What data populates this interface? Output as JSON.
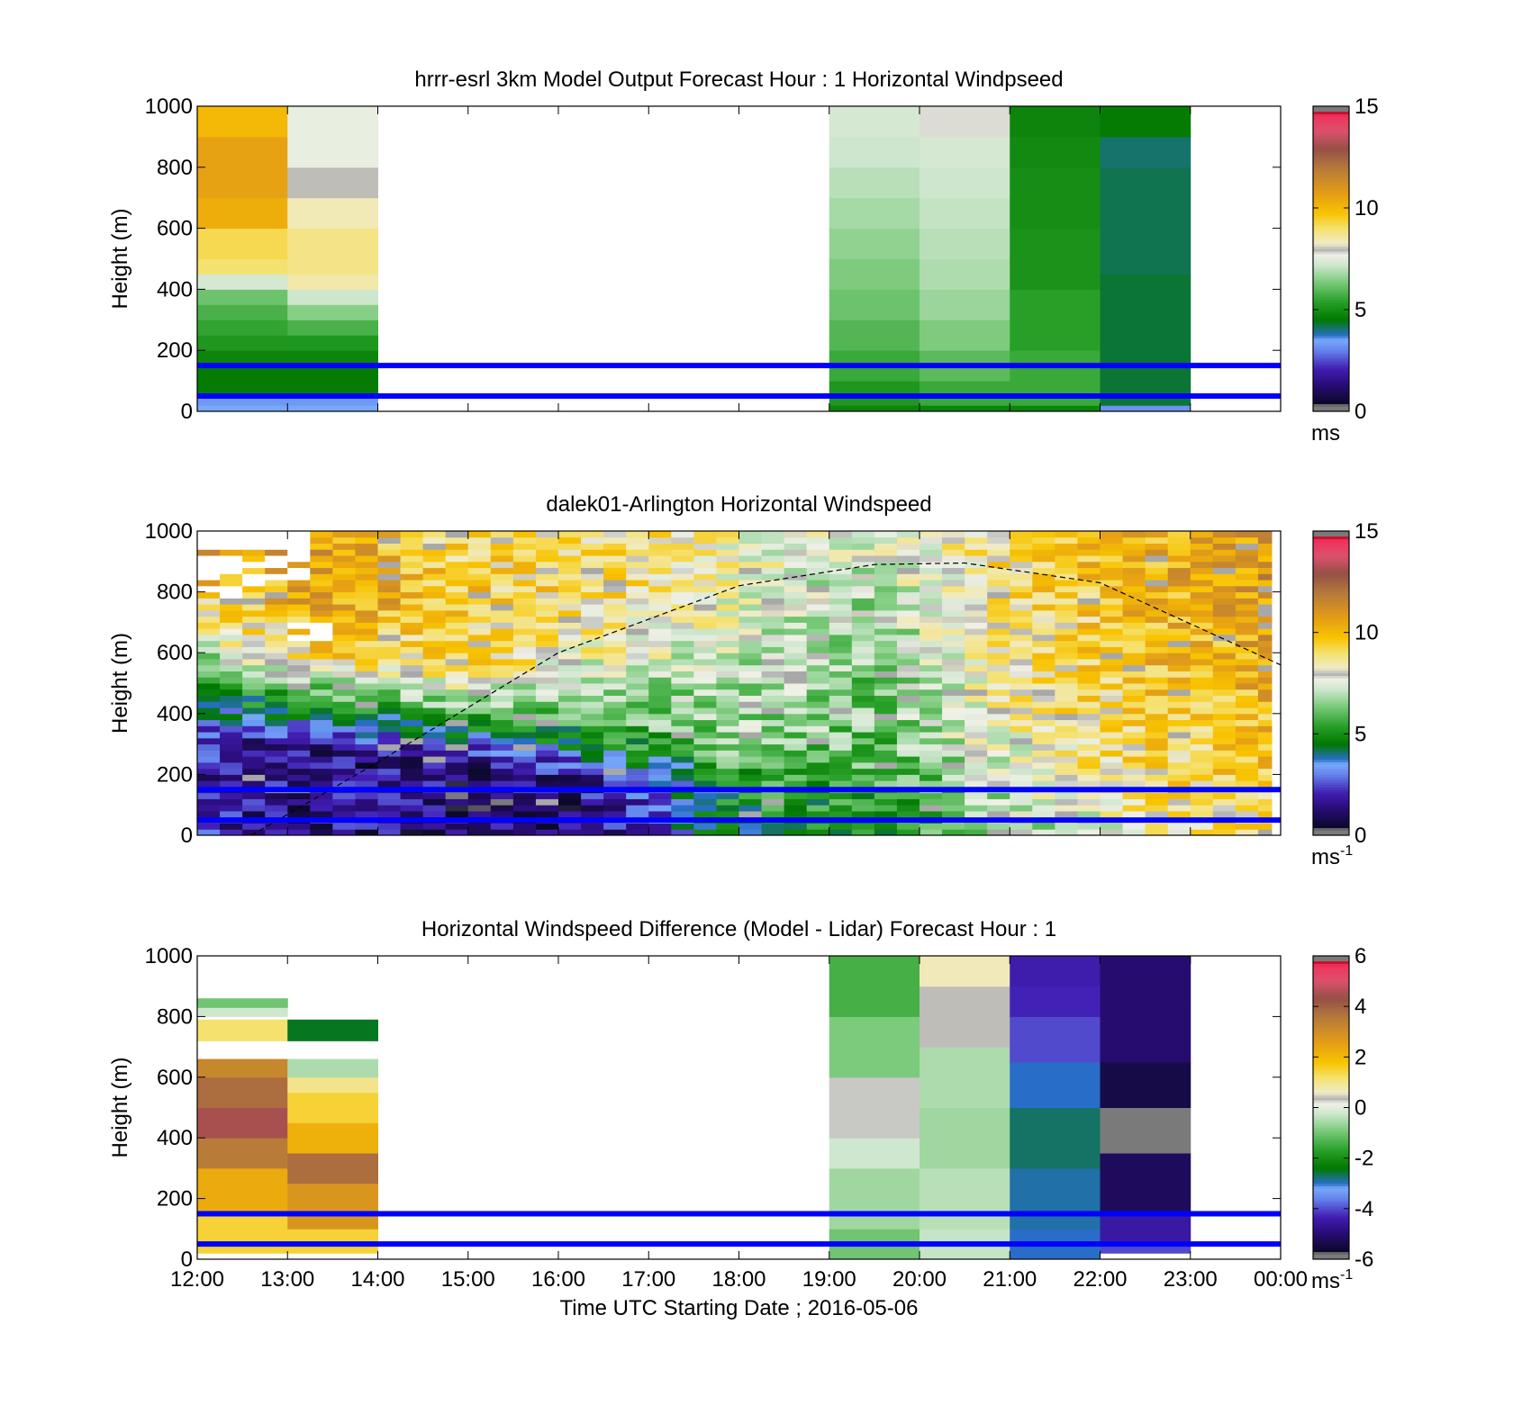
{
  "x_tick_labels": [
    "12:00",
    "13:00",
    "14:00",
    "15:00",
    "16:00",
    "17:00",
    "18:00",
    "19:00",
    "20:00",
    "21:00",
    "22:00",
    "23:00",
    "00:00"
  ],
  "xlabel": "Time UTC  Starting Date ; 2016-05-06",
  "chart_data": [
    {
      "type": "heatmap",
      "title": "hrrr-esrl 3km Model Output   Forecast Hour : 1 Horizontal Windpseed",
      "ylabel": "Height (m)",
      "ylim": [
        0,
        1000
      ],
      "y_ticks": [
        0,
        200,
        400,
        600,
        800,
        1000
      ],
      "colorbar": {
        "min": 0,
        "max": 15,
        "ticks": [
          0,
          5,
          10,
          15
        ],
        "unit": "ms",
        "unit_sup": ""
      },
      "reference_lines_m": [
        50,
        150
      ],
      "grid": false,
      "columns": [
        {
          "hour_start": 12,
          "hour_end": 13,
          "segments": [
            [
              0,
              20,
              3.5
            ],
            [
              20,
              50,
              3.3
            ],
            [
              50,
              100,
              4.6
            ],
            [
              100,
              150,
              4.6
            ],
            [
              150,
              200,
              4.8
            ],
            [
              200,
              250,
              5.2
            ],
            [
              250,
              300,
              5.5
            ],
            [
              300,
              350,
              5.8
            ],
            [
              350,
              400,
              6.2
            ],
            [
              400,
              450,
              7.3
            ],
            [
              450,
              500,
              9.0
            ],
            [
              500,
              600,
              9.2
            ],
            [
              600,
              700,
              10.3
            ],
            [
              700,
              800,
              10.6
            ],
            [
              800,
              900,
              10.6
            ],
            [
              900,
              1000,
              10.0
            ]
          ]
        },
        {
          "hour_start": 13,
          "hour_end": 14,
          "segments": [
            [
              0,
              20,
              3.5
            ],
            [
              20,
              50,
              3.3
            ],
            [
              50,
              150,
              4.6
            ],
            [
              150,
              200,
              4.8
            ],
            [
              200,
              250,
              5.2
            ],
            [
              250,
              300,
              5.8
            ],
            [
              300,
              350,
              6.5
            ],
            [
              350,
              400,
              7.2
            ],
            [
              400,
              450,
              8.5
            ],
            [
              450,
              600,
              8.8
            ],
            [
              600,
              700,
              8.4
            ],
            [
              700,
              800,
              8.0
            ],
            [
              800,
              900,
              7.6
            ],
            [
              900,
              1000,
              7.6
            ]
          ]
        },
        {
          "hour_start": 19,
          "hour_end": 20,
          "segments": [
            [
              0,
              20,
              4.8
            ],
            [
              20,
              100,
              5.2
            ],
            [
              100,
              200,
              5.6
            ],
            [
              200,
              300,
              5.9
            ],
            [
              300,
              400,
              6.2
            ],
            [
              400,
              500,
              6.4
            ],
            [
              500,
              600,
              6.6
            ],
            [
              600,
              700,
              6.8
            ],
            [
              700,
              800,
              7.0
            ],
            [
              800,
              900,
              7.2
            ],
            [
              900,
              1000,
              7.3
            ]
          ]
        },
        {
          "hour_start": 20,
          "hour_end": 21,
          "segments": [
            [
              0,
              20,
              4.8
            ],
            [
              20,
              100,
              5.6
            ],
            [
              100,
              200,
              6.0
            ],
            [
              200,
              300,
              6.4
            ],
            [
              300,
              400,
              6.7
            ],
            [
              400,
              500,
              6.9
            ],
            [
              500,
              600,
              7.0
            ],
            [
              600,
              700,
              7.1
            ],
            [
              700,
              800,
              7.2
            ],
            [
              800,
              900,
              7.3
            ],
            [
              900,
              1000,
              7.8
            ]
          ]
        },
        {
          "hour_start": 21,
          "hour_end": 22,
          "segments": [
            [
              0,
              20,
              4.8
            ],
            [
              20,
              200,
              5.6
            ],
            [
              200,
              400,
              5.4
            ],
            [
              400,
              600,
              5.1
            ],
            [
              600,
              800,
              5.0
            ],
            [
              800,
              900,
              4.9
            ],
            [
              900,
              1000,
              4.8
            ]
          ]
        },
        {
          "hour_start": 22,
          "hour_end": 23,
          "segments": [
            [
              0,
              20,
              3.2
            ],
            [
              20,
              100,
              4.3
            ],
            [
              100,
              450,
              4.3
            ],
            [
              450,
              800,
              4.2
            ],
            [
              800,
              900,
              4.1
            ],
            [
              900,
              1000,
              4.6
            ]
          ]
        }
      ]
    },
    {
      "type": "heatmap",
      "title": "dalek01-Arlington  Horizontal Windspeed",
      "ylabel": "Height (m)",
      "ylim": [
        0,
        1000
      ],
      "y_ticks": [
        0,
        200,
        400,
        600,
        800,
        1000
      ],
      "colorbar": {
        "min": 0,
        "max": 15,
        "ticks": [
          0,
          5,
          10,
          15
        ],
        "unit": "ms",
        "unit_sup": "-1"
      },
      "reference_lines_m": [
        50,
        150
      ],
      "grid": false,
      "overlay_curve": {
        "style": "dashed",
        "x_hours": [
          12.6,
          14.0,
          16.0,
          18.0,
          19.5,
          20.5,
          22.0,
          24.0
        ],
        "y_m": [
          0,
          240,
          600,
          820,
          890,
          895,
          830,
          560
        ]
      },
      "time_resolution_hours": 0.25,
      "height_resolution_m": 20,
      "profile_anchors_hours": [
        12,
        13.5,
        15,
        16.5,
        18,
        19.5,
        21,
        22.5,
        24
      ],
      "profile_anchors": [
        [
          [
            0,
            2.0
          ],
          [
            300,
            2.0
          ],
          [
            400,
            3.5
          ],
          [
            500,
            5.5
          ],
          [
            650,
            7.8
          ],
          [
            800,
            9.5
          ],
          [
            1000,
            10.8
          ]
        ],
        [
          [
            0,
            1.5
          ],
          [
            300,
            1.5
          ],
          [
            400,
            4.5
          ],
          [
            500,
            7.0
          ],
          [
            600,
            9.5
          ],
          [
            800,
            10.8
          ],
          [
            1000,
            10.5
          ]
        ],
        [
          [
            0,
            1.0
          ],
          [
            250,
            1.5
          ],
          [
            350,
            4.5
          ],
          [
            450,
            7.0
          ],
          [
            550,
            9.0
          ],
          [
            800,
            9.5
          ],
          [
            1000,
            9.0
          ]
        ],
        [
          [
            0,
            1.2
          ],
          [
            200,
            2.0
          ],
          [
            300,
            5.0
          ],
          [
            450,
            6.5
          ],
          [
            600,
            8.0
          ],
          [
            800,
            9.0
          ],
          [
            1000,
            8.8
          ]
        ],
        [
          [
            0,
            4.8
          ],
          [
            150,
            5.0
          ],
          [
            300,
            6.5
          ],
          [
            500,
            7.0
          ],
          [
            700,
            7.8
          ],
          [
            1000,
            8.2
          ]
        ],
        [
          [
            0,
            5.0
          ],
          [
            150,
            5.5
          ],
          [
            350,
            6.2
          ],
          [
            600,
            6.5
          ],
          [
            800,
            7.0
          ],
          [
            1000,
            7.6
          ]
        ],
        [
          [
            0,
            6.8
          ],
          [
            200,
            7.5
          ],
          [
            400,
            8.2
          ],
          [
            600,
            8.5
          ],
          [
            800,
            9.0
          ],
          [
            1000,
            9.0
          ]
        ],
        [
          [
            0,
            8.0
          ],
          [
            200,
            9.0
          ],
          [
            400,
            9.5
          ],
          [
            600,
            9.8
          ],
          [
            800,
            10.0
          ],
          [
            1000,
            10.2
          ]
        ],
        [
          [
            0,
            9.0
          ],
          [
            200,
            9.5
          ],
          [
            400,
            10.0
          ],
          [
            600,
            10.5
          ],
          [
            800,
            11.0
          ],
          [
            1000,
            11.0
          ]
        ]
      ]
    },
    {
      "type": "heatmap",
      "title": "Horizontal Windspeed Difference (Model - Lidar) Forecast Hour : 1",
      "ylabel": "Height (m)",
      "ylim": [
        0,
        1000
      ],
      "y_ticks": [
        0,
        200,
        400,
        600,
        800,
        1000
      ],
      "colorbar": {
        "min": -6,
        "max": 6,
        "ticks": [
          -6,
          -4,
          -2,
          0,
          2,
          4,
          6
        ],
        "unit": "ms",
        "unit_sup": "-1"
      },
      "reference_lines_m": [
        50,
        150
      ],
      "grid": false,
      "columns": [
        {
          "hour_start": 12,
          "hour_end": 13,
          "segments": [
            [
              20,
              150,
              1.5
            ],
            [
              150,
              300,
              2.3
            ],
            [
              300,
              400,
              3.5
            ],
            [
              400,
              500,
              4.5
            ],
            [
              500,
              600,
              3.8
            ],
            [
              600,
              660,
              3.2
            ],
            [
              720,
              790,
              1.2
            ],
            [
              800,
              830,
              -0.2
            ],
            [
              830,
              860,
              -1.0
            ]
          ]
        },
        {
          "hour_start": 13,
          "hour_end": 14,
          "segments": [
            [
              20,
              100,
              1.5
            ],
            [
              100,
              250,
              2.8
            ],
            [
              250,
              350,
              3.8
            ],
            [
              350,
              450,
              2.2
            ],
            [
              450,
              550,
              1.5
            ],
            [
              550,
              600,
              1.0
            ],
            [
              600,
              660,
              -0.5
            ],
            [
              720,
              790,
              -2.5
            ]
          ]
        },
        {
          "hour_start": 19,
          "hour_end": 20,
          "segments": [
            [
              0,
              100,
              -1.0
            ],
            [
              100,
              300,
              -0.6
            ],
            [
              300,
              400,
              -0.2
            ],
            [
              400,
              600,
              0.3
            ],
            [
              600,
              800,
              -0.9
            ],
            [
              800,
              1000,
              -1.4
            ]
          ]
        },
        {
          "hour_start": 20,
          "hour_end": 21,
          "segments": [
            [
              0,
              100,
              -0.3
            ],
            [
              100,
              300,
              -0.4
            ],
            [
              300,
              500,
              -0.6
            ],
            [
              500,
              700,
              -0.5
            ],
            [
              700,
              900,
              0.4
            ],
            [
              900,
              1000,
              0.7
            ]
          ]
        },
        {
          "hour_start": 21,
          "hour_end": 22,
          "segments": [
            [
              0,
              100,
              -3.0
            ],
            [
              100,
              300,
              -2.9
            ],
            [
              300,
              500,
              -2.7
            ],
            [
              500,
              650,
              -3.0
            ],
            [
              650,
              800,
              -4.0
            ],
            [
              800,
              900,
              -4.3
            ],
            [
              900,
              1000,
              -4.4
            ]
          ]
        },
        {
          "hour_start": 22,
          "hour_end": 23,
          "segments": [
            [
              20,
              60,
              -4.0
            ],
            [
              60,
              150,
              -4.5
            ],
            [
              150,
              350,
              -5.2
            ],
            [
              350,
              500,
              -6.0
            ],
            [
              500,
              650,
              -5.4
            ],
            [
              650,
              850,
              -5.0
            ],
            [
              850,
              1000,
              -5.0
            ]
          ]
        }
      ]
    }
  ]
}
